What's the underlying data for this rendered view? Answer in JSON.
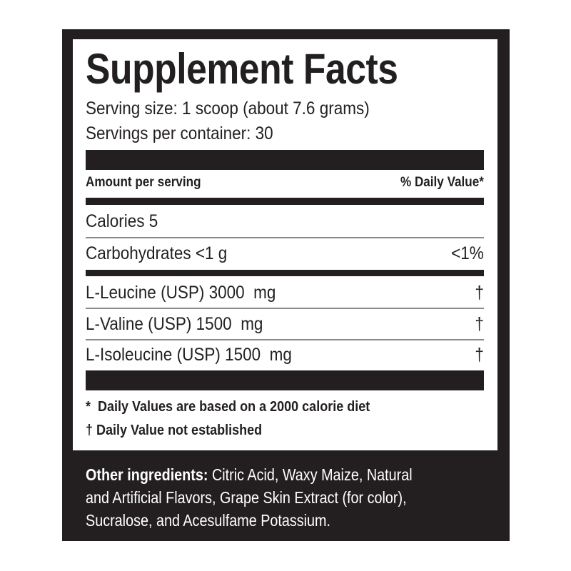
{
  "title": "Supplement Facts",
  "serving_size": "Serving size: 1 scoop (about 7.6 grams)",
  "servings_per_container": "Servings per container: 30",
  "header": {
    "amount": "Amount per serving",
    "dv": "% Daily Value*"
  },
  "rows": [
    {
      "label": "Calories 5",
      "dv": ""
    },
    {
      "label": "Carbohydrates <1 g",
      "dv": "<1%"
    },
    {
      "label": "L-Leucine (USP) 3000  mg",
      "dv": "†"
    },
    {
      "label": "L-Valine (USP) 1500  mg",
      "dv": "†"
    },
    {
      "label": "L-Isoleucine (USP) 1500  mg",
      "dv": "†"
    }
  ],
  "footnotes": [
    "*  Daily Values are based on a 2000 calorie diet",
    "† Daily Value not established"
  ],
  "other_ingredients": {
    "label": "Other ingredients:",
    "lines": [
      " Citric Acid, Waxy Maize, Natural",
      "and Artificial Flavors, Grape Skin Extract (for color),",
      "Sucralose, and Acesulfame Potassium."
    ]
  },
  "colors": {
    "ink": "#231f20",
    "background": "#ffffff"
  }
}
